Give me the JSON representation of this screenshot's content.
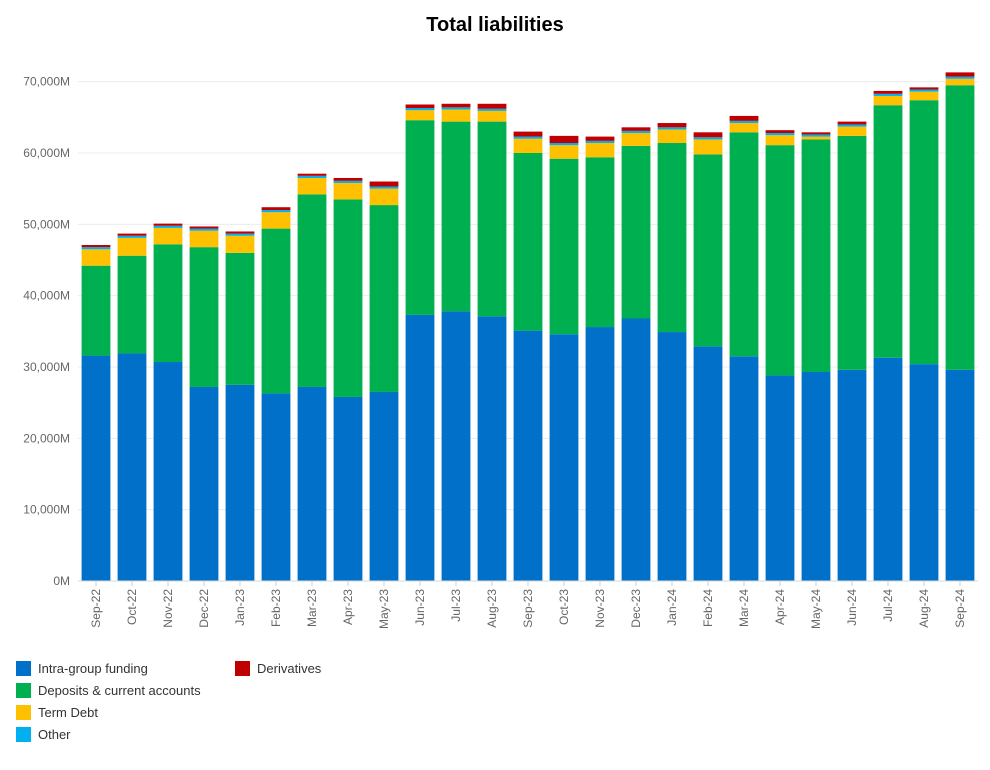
{
  "chart_data": {
    "type": "bar",
    "stacked": true,
    "title": "Total liabilities",
    "xlabel": "",
    "ylabel": "",
    "ylim": [
      0,
      75000
    ],
    "yticks": [
      0,
      10000,
      20000,
      30000,
      40000,
      50000,
      60000,
      70000
    ],
    "ytick_labels": [
      "0M",
      "10,000M",
      "20,000M",
      "30,000M",
      "40,000M",
      "50,000M",
      "60,000M",
      "70,000M"
    ],
    "grid": true,
    "legend_position": "bottom-left",
    "categories": [
      "Sep-22",
      "Oct-22",
      "Nov-22",
      "Dec-22",
      "Jan-23",
      "Feb-23",
      "Mar-23",
      "Apr-23",
      "May-23",
      "Jun-23",
      "Jul-23",
      "Aug-23",
      "Sep-23",
      "Oct-23",
      "Nov-23",
      "Dec-23",
      "Jan-24",
      "Feb-24",
      "Mar-24",
      "Apr-24",
      "May-24",
      "Jun-24",
      "Jul-24",
      "Aug-24",
      "Sep-24"
    ],
    "series": [
      {
        "name": "Intra-group funding",
        "color": "#0070C8",
        "values": [
          31600,
          31900,
          30700,
          27200,
          27500,
          26300,
          27200,
          25800,
          26500,
          37300,
          37800,
          37100,
          35100,
          34600,
          35600,
          36800,
          34900,
          32900,
          31500,
          28800,
          29300,
          29600,
          31300,
          30400,
          29600
        ]
      },
      {
        "name": "Deposits & current accounts",
        "color": "#00B050",
        "values": [
          12600,
          13700,
          16500,
          19600,
          18500,
          23100,
          27000,
          27700,
          26200,
          27300,
          26600,
          27300,
          24900,
          24600,
          23800,
          24200,
          26500,
          26900,
          31400,
          32300,
          32600,
          32800,
          35400,
          37000,
          39900
        ]
      },
      {
        "name": "Term Debt",
        "color": "#FFC000",
        "values": [
          2300,
          2500,
          2300,
          2300,
          2400,
          2300,
          2300,
          2300,
          2300,
          1400,
          1700,
          1500,
          2000,
          1900,
          2000,
          1800,
          1900,
          2100,
          1300,
          1400,
          400,
          1300,
          1300,
          1200,
          900
        ]
      },
      {
        "name": "Other",
        "color": "#00B0F0",
        "values": [
          300,
          300,
          300,
          300,
          300,
          300,
          300,
          300,
          300,
          300,
          300,
          300,
          300,
          300,
          300,
          300,
          300,
          300,
          300,
          300,
          300,
          300,
          300,
          300,
          300
        ]
      },
      {
        "name": "Derivatives",
        "color": "#C00000",
        "values": [
          300,
          300,
          300,
          300,
          300,
          400,
          300,
          400,
          700,
          500,
          500,
          700,
          700,
          1000,
          600,
          500,
          600,
          700,
          700,
          400,
          300,
          400,
          400,
          300,
          600
        ]
      }
    ],
    "legend_entries": [
      {
        "name": "Intra-group funding",
        "color": "#0070C8"
      },
      {
        "name": "Deposits & current accounts",
        "color": "#00B050"
      },
      {
        "name": "Term Debt",
        "color": "#FFC000"
      },
      {
        "name": "Other",
        "color": "#00B0F0"
      },
      {
        "name": "Derivatives",
        "color": "#C00000"
      }
    ]
  }
}
